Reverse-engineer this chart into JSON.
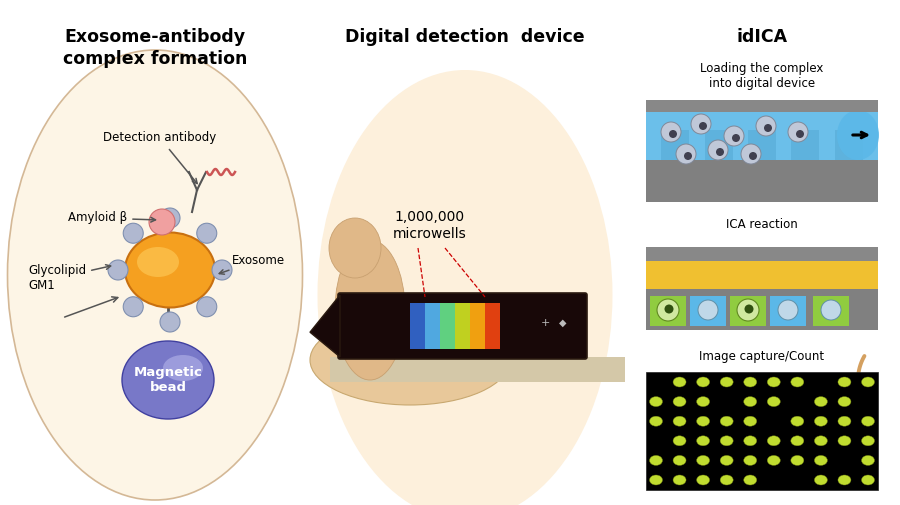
{
  "background_color": "#ffffff",
  "panel1_title": "Exosome-antibody\ncomplex formation",
  "panel2_title": "Digital detection  device",
  "panel3_title": "idICA",
  "panel3_label1": "Loading the complex\ninto digital device",
  "panel3_label2": "ICA reaction",
  "panel3_label3": "Image capture/Count",
  "panel2_annotation": "1,000,000\nmicrowells",
  "label_detection": "Detection antibody",
  "label_amyloid": "Amyloid β",
  "label_glycolipid": "Glycolipid\nGM1",
  "label_exosome": "Exosome",
  "label_magnetic": "Magnetic\nbead",
  "circle1_color": "#fdf5e6",
  "circle1_edge": "#d4b896",
  "panel2_bg": "#fdf0dc",
  "curve_arrow_color": "#d4a060",
  "ica_blue": "#5bb8e8",
  "ica_gray": "#808080",
  "ica_yellow": "#f0c030",
  "ica_green": "#90cc40",
  "dots_bg": "#000000",
  "dots_color": "#c8e040"
}
